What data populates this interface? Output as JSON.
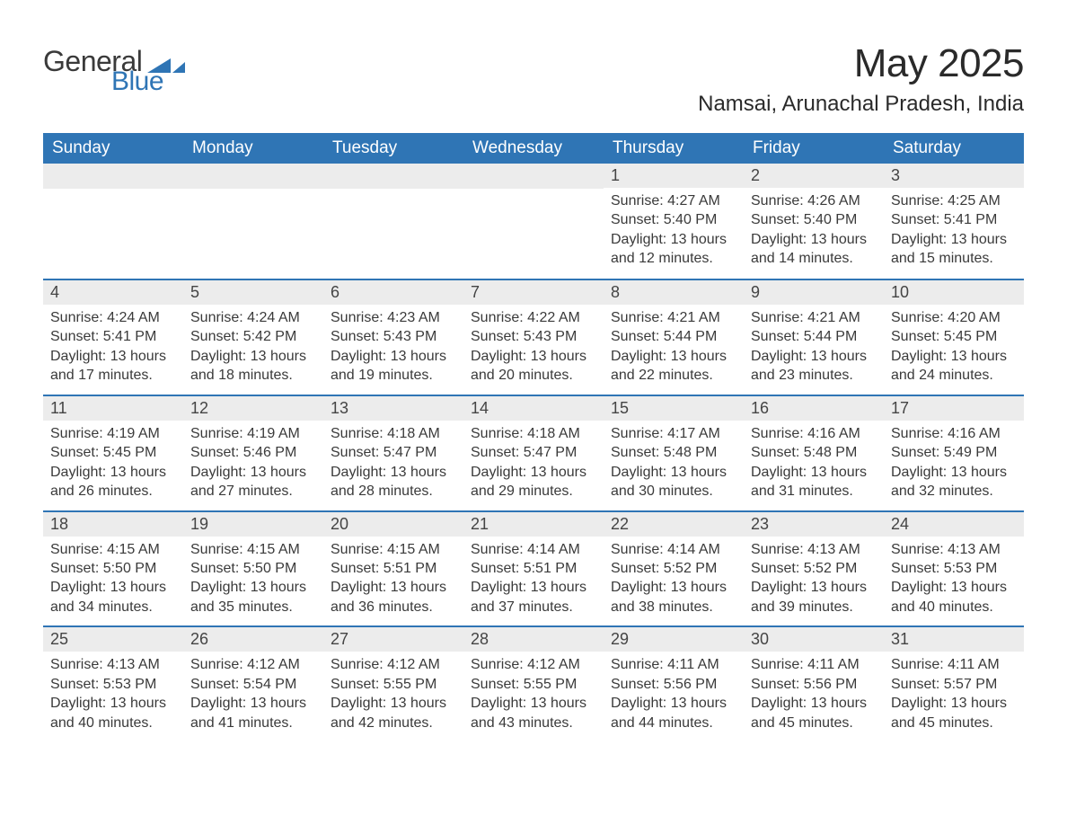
{
  "brand": {
    "word1": "General",
    "word2": "Blue"
  },
  "title": "May 2025",
  "location": "Namsai, Arunachal Pradesh, India",
  "colors": {
    "header_bg": "#2f75b5",
    "header_text": "#ffffff",
    "daynum_bg": "#ececec",
    "week_border": "#2f75b5",
    "page_bg": "#ffffff",
    "text": "#3a3a3a",
    "brand_blue": "#2f75b5"
  },
  "fonts": {
    "title_size_pt": 33,
    "location_size_pt": 18,
    "dow_size_pt": 14,
    "body_size_pt": 12
  },
  "layout": {
    "columns": 7,
    "rows": 5,
    "start_dow_index": 4
  },
  "dow": [
    "Sunday",
    "Monday",
    "Tuesday",
    "Wednesday",
    "Thursday",
    "Friday",
    "Saturday"
  ],
  "days": [
    {
      "n": 1,
      "sunrise": "4:27 AM",
      "sunset": "5:40 PM",
      "daylight": "13 hours and 12 minutes."
    },
    {
      "n": 2,
      "sunrise": "4:26 AM",
      "sunset": "5:40 PM",
      "daylight": "13 hours and 14 minutes."
    },
    {
      "n": 3,
      "sunrise": "4:25 AM",
      "sunset": "5:41 PM",
      "daylight": "13 hours and 15 minutes."
    },
    {
      "n": 4,
      "sunrise": "4:24 AM",
      "sunset": "5:41 PM",
      "daylight": "13 hours and 17 minutes."
    },
    {
      "n": 5,
      "sunrise": "4:24 AM",
      "sunset": "5:42 PM",
      "daylight": "13 hours and 18 minutes."
    },
    {
      "n": 6,
      "sunrise": "4:23 AM",
      "sunset": "5:43 PM",
      "daylight": "13 hours and 19 minutes."
    },
    {
      "n": 7,
      "sunrise": "4:22 AM",
      "sunset": "5:43 PM",
      "daylight": "13 hours and 20 minutes."
    },
    {
      "n": 8,
      "sunrise": "4:21 AM",
      "sunset": "5:44 PM",
      "daylight": "13 hours and 22 minutes."
    },
    {
      "n": 9,
      "sunrise": "4:21 AM",
      "sunset": "5:44 PM",
      "daylight": "13 hours and 23 minutes."
    },
    {
      "n": 10,
      "sunrise": "4:20 AM",
      "sunset": "5:45 PM",
      "daylight": "13 hours and 24 minutes."
    },
    {
      "n": 11,
      "sunrise": "4:19 AM",
      "sunset": "5:45 PM",
      "daylight": "13 hours and 26 minutes."
    },
    {
      "n": 12,
      "sunrise": "4:19 AM",
      "sunset": "5:46 PM",
      "daylight": "13 hours and 27 minutes."
    },
    {
      "n": 13,
      "sunrise": "4:18 AM",
      "sunset": "5:47 PM",
      "daylight": "13 hours and 28 minutes."
    },
    {
      "n": 14,
      "sunrise": "4:18 AM",
      "sunset": "5:47 PM",
      "daylight": "13 hours and 29 minutes."
    },
    {
      "n": 15,
      "sunrise": "4:17 AM",
      "sunset": "5:48 PM",
      "daylight": "13 hours and 30 minutes."
    },
    {
      "n": 16,
      "sunrise": "4:16 AM",
      "sunset": "5:48 PM",
      "daylight": "13 hours and 31 minutes."
    },
    {
      "n": 17,
      "sunrise": "4:16 AM",
      "sunset": "5:49 PM",
      "daylight": "13 hours and 32 minutes."
    },
    {
      "n": 18,
      "sunrise": "4:15 AM",
      "sunset": "5:50 PM",
      "daylight": "13 hours and 34 minutes."
    },
    {
      "n": 19,
      "sunrise": "4:15 AM",
      "sunset": "5:50 PM",
      "daylight": "13 hours and 35 minutes."
    },
    {
      "n": 20,
      "sunrise": "4:15 AM",
      "sunset": "5:51 PM",
      "daylight": "13 hours and 36 minutes."
    },
    {
      "n": 21,
      "sunrise": "4:14 AM",
      "sunset": "5:51 PM",
      "daylight": "13 hours and 37 minutes."
    },
    {
      "n": 22,
      "sunrise": "4:14 AM",
      "sunset": "5:52 PM",
      "daylight": "13 hours and 38 minutes."
    },
    {
      "n": 23,
      "sunrise": "4:13 AM",
      "sunset": "5:52 PM",
      "daylight": "13 hours and 39 minutes."
    },
    {
      "n": 24,
      "sunrise": "4:13 AM",
      "sunset": "5:53 PM",
      "daylight": "13 hours and 40 minutes."
    },
    {
      "n": 25,
      "sunrise": "4:13 AM",
      "sunset": "5:53 PM",
      "daylight": "13 hours and 40 minutes."
    },
    {
      "n": 26,
      "sunrise": "4:12 AM",
      "sunset": "5:54 PM",
      "daylight": "13 hours and 41 minutes."
    },
    {
      "n": 27,
      "sunrise": "4:12 AM",
      "sunset": "5:55 PM",
      "daylight": "13 hours and 42 minutes."
    },
    {
      "n": 28,
      "sunrise": "4:12 AM",
      "sunset": "5:55 PM",
      "daylight": "13 hours and 43 minutes."
    },
    {
      "n": 29,
      "sunrise": "4:11 AM",
      "sunset": "5:56 PM",
      "daylight": "13 hours and 44 minutes."
    },
    {
      "n": 30,
      "sunrise": "4:11 AM",
      "sunset": "5:56 PM",
      "daylight": "13 hours and 45 minutes."
    },
    {
      "n": 31,
      "sunrise": "4:11 AM",
      "sunset": "5:57 PM",
      "daylight": "13 hours and 45 minutes."
    }
  ],
  "labels": {
    "sunrise": "Sunrise: ",
    "sunset": "Sunset: ",
    "daylight": "Daylight: "
  }
}
